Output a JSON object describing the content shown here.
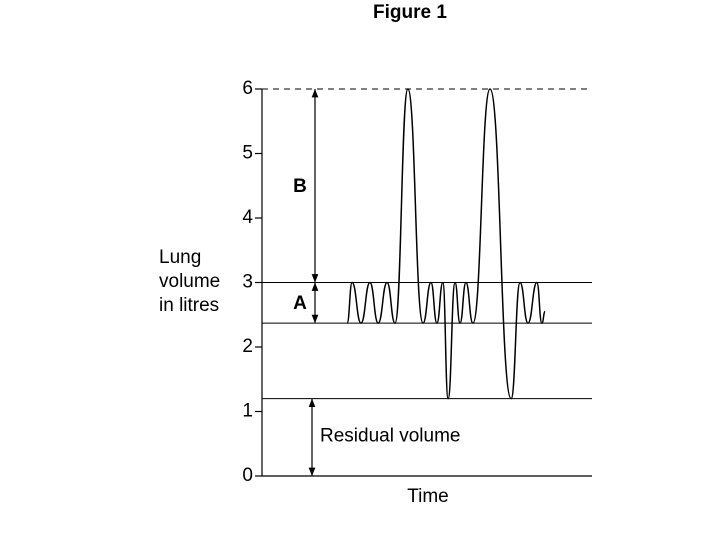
{
  "chart_data": {
    "type": "line",
    "title": "Figure 1",
    "xlabel": "Time",
    "ylabel": [
      "Lung",
      "volume",
      "in litres"
    ],
    "xlim": [
      0,
      100
    ],
    "ylim": [
      0,
      6
    ],
    "yticks": [
      0,
      1,
      2,
      3,
      4,
      5,
      6
    ],
    "color": "#000000",
    "x": [
      25.8,
      27.3,
      30,
      32.7,
      35.2,
      37.9,
      40.3,
      44.2,
      48.8,
      51.2,
      53,
      54.8,
      56.4,
      58.5,
      60,
      61.8,
      63.9,
      69.1,
      75.5,
      78.2,
      80.6,
      83.3,
      84.8,
      85.8
    ],
    "values": [
      2.37,
      3,
      2.37,
      3,
      2.37,
      3,
      2.37,
      6,
      2.37,
      3,
      2.37,
      3,
      1.2,
      3,
      2.37,
      3,
      2.37,
      6,
      1.2,
      3,
      2.37,
      3,
      2.37,
      2.55
    ],
    "reference_lines": [
      {
        "value": 6,
        "dashed": true
      },
      {
        "value": 3,
        "dashed": false
      },
      {
        "value": 2.37,
        "dashed": false
      },
      {
        "value": 1.2,
        "dashed": false
      }
    ],
    "annotations": [
      {
        "text": "B",
        "from": 3,
        "to": 6
      },
      {
        "text": "A",
        "from": 2.37,
        "to": 3
      },
      {
        "text": "Residual volume",
        "from": 0,
        "to": 1.2
      }
    ]
  }
}
